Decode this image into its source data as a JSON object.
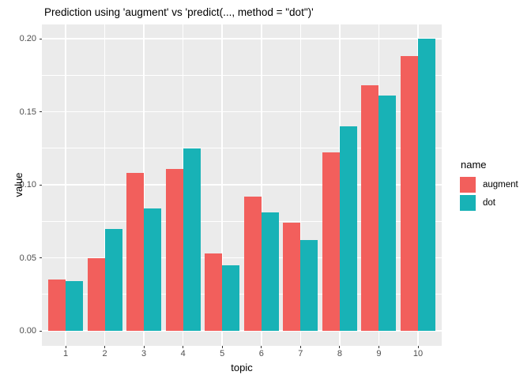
{
  "chart_data": {
    "type": "bar",
    "title": "Prediction using 'augment' vs 'predict(..., method = \"dot\")'",
    "xlabel": "topic",
    "ylabel": "value",
    "legend_title": "name",
    "legend_position": "right",
    "grid": true,
    "categories": [
      "1",
      "2",
      "3",
      "4",
      "5",
      "6",
      "7",
      "8",
      "9",
      "10"
    ],
    "series": [
      {
        "name": "augment",
        "color": "#F25F5C",
        "values": [
          0.035,
          0.05,
          0.108,
          0.111,
          0.053,
          0.092,
          0.074,
          0.122,
          0.168,
          0.188
        ]
      },
      {
        "name": "dot",
        "color": "#18B2B6",
        "values": [
          0.034,
          0.07,
          0.084,
          0.125,
          0.045,
          0.081,
          0.062,
          0.14,
          0.161,
          0.2
        ]
      }
    ],
    "y_ticks": [
      0.0,
      0.05,
      0.1,
      0.15,
      0.2
    ],
    "y_tick_labels": [
      "0.00",
      "0.05",
      "0.10",
      "0.15",
      "0.20"
    ],
    "y_minor_ticks": [
      0.025,
      0.075,
      0.125,
      0.175
    ],
    "ylim": [
      -0.01,
      0.21
    ],
    "colors": {
      "panel_background": "#EBEBEB",
      "gridline": "#FFFFFF",
      "tick_text": "#4D4D4D",
      "tick_mark": "#333333",
      "text": "#000000"
    }
  }
}
